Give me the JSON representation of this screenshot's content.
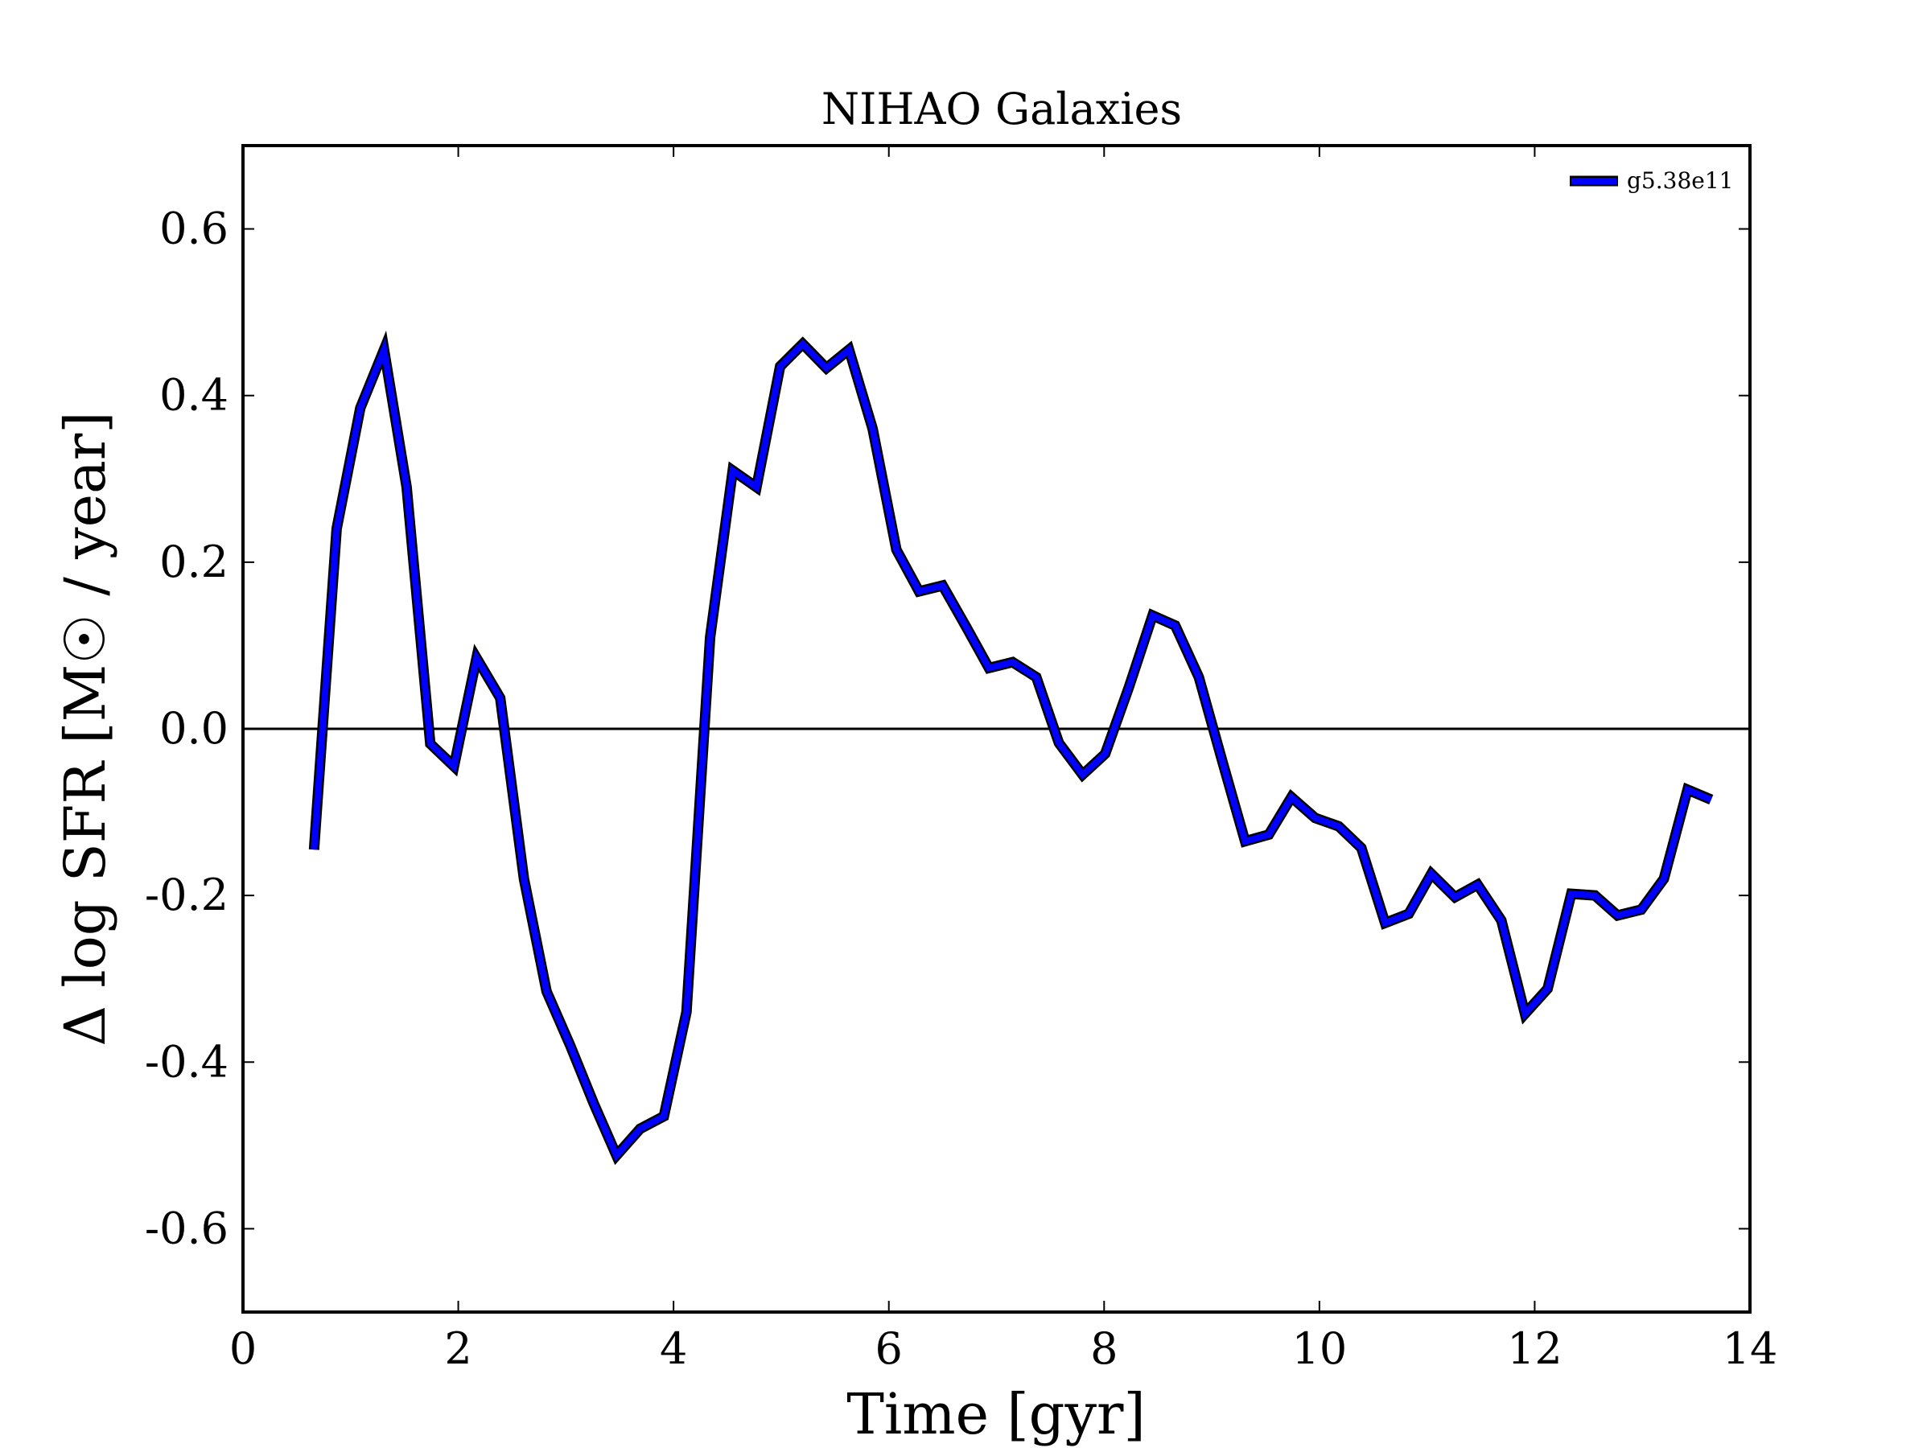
{
  "chart_data": {
    "type": "line",
    "title": "NIHAO Galaxies",
    "xlabel": "Time [gyr]",
    "ylabel": "Δ log SFR [M☉ / year]",
    "xlim": [
      0,
      14
    ],
    "ylim": [
      -0.7,
      0.7
    ],
    "xticks": [
      0,
      2,
      4,
      6,
      8,
      10,
      12,
      14
    ],
    "xtick_labels": [
      "0",
      "2",
      "4",
      "6",
      "8",
      "10",
      "12",
      "14"
    ],
    "yticks": [
      -0.6,
      -0.4,
      -0.2,
      0.0,
      0.2,
      0.4,
      0.6
    ],
    "ytick_labels": [
      "-0.6",
      "-0.4",
      "-0.2",
      "0.0",
      "0.2",
      "0.4",
      "0.6"
    ],
    "grid": false,
    "legend_position": "top-right",
    "reference_line": {
      "y": 0.0,
      "color": "#000000"
    },
    "series": [
      {
        "name": "g5.38e11",
        "color": "#0000ff",
        "x": [
          0.66,
          0.87,
          1.09,
          1.31,
          1.52,
          1.74,
          1.96,
          2.17,
          2.39,
          2.61,
          2.82,
          3.04,
          3.26,
          3.47,
          3.69,
          3.91,
          4.12,
          4.34,
          4.55,
          4.77,
          4.99,
          5.2,
          5.42,
          5.63,
          5.85,
          6.07,
          6.28,
          6.5,
          6.72,
          6.93,
          7.15,
          7.37,
          7.58,
          7.8,
          8.01,
          8.23,
          8.45,
          8.66,
          8.88,
          9.1,
          9.31,
          9.53,
          9.74,
          9.96,
          10.18,
          10.39,
          10.61,
          10.83,
          11.04,
          11.26,
          11.47,
          11.69,
          11.91,
          12.12,
          12.34,
          12.56,
          12.77,
          12.99,
          13.2,
          13.42,
          13.64
        ],
        "y": [
          -0.145,
          0.24,
          0.385,
          0.455,
          0.29,
          -0.018,
          -0.045,
          0.085,
          0.037,
          -0.18,
          -0.315,
          -0.38,
          -0.45,
          -0.512,
          -0.48,
          -0.465,
          -0.34,
          0.11,
          0.31,
          0.29,
          0.435,
          0.462,
          0.433,
          0.455,
          0.36,
          0.215,
          0.165,
          0.172,
          0.122,
          0.073,
          0.08,
          0.062,
          -0.017,
          -0.055,
          -0.03,
          0.05,
          0.136,
          0.124,
          0.062,
          -0.04,
          -0.135,
          -0.127,
          -0.082,
          -0.107,
          -0.117,
          -0.143,
          -0.233,
          -0.222,
          -0.174,
          -0.202,
          -0.187,
          -0.23,
          -0.342,
          -0.312,
          -0.198,
          -0.2,
          -0.224,
          -0.217,
          -0.18,
          -0.073,
          -0.085
        ]
      }
    ]
  }
}
